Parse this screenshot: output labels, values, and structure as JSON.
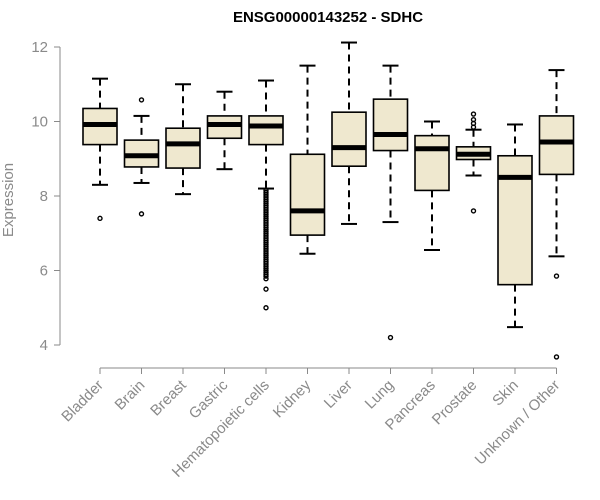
{
  "chart_data": {
    "type": "box",
    "title": "ENSG00000143252 - SDHC",
    "ylabel": "Expression",
    "xlabel": "",
    "ylim": [
      3.6,
      12.2
    ],
    "yticks": [
      4,
      6,
      8,
      10,
      12
    ],
    "ytick_labels": [
      "4",
      "6",
      "8",
      "10",
      "12"
    ],
    "box_fill": "#efe8cf",
    "box_stroke": "#000000",
    "median_color": "#000000",
    "axis_color": "#8a8a8a",
    "categories": [
      "Bladder",
      "Brain",
      "Breast",
      "Gastric",
      "Hematopoietic cells",
      "Kidney",
      "Liver",
      "Lung",
      "Pancreas",
      "Prostate",
      "Skin",
      "Unknown / Other"
    ],
    "boxes": [
      {
        "category": "Bladder",
        "whisker_low": 8.3,
        "q1": 9.38,
        "median": 9.92,
        "q3": 10.35,
        "whisker_high": 11.15,
        "outliers": [
          7.4
        ]
      },
      {
        "category": "Brain",
        "whisker_low": 8.35,
        "q1": 8.78,
        "median": 9.08,
        "q3": 9.5,
        "whisker_high": 10.15,
        "outliers": [
          10.58,
          7.52
        ]
      },
      {
        "category": "Breast",
        "whisker_low": 8.05,
        "q1": 8.75,
        "median": 9.4,
        "q3": 9.82,
        "whisker_high": 11.0,
        "outliers": []
      },
      {
        "category": "Gastric",
        "whisker_low": 8.72,
        "q1": 9.55,
        "median": 9.92,
        "q3": 10.15,
        "whisker_high": 10.8,
        "outliers": []
      },
      {
        "category": "Hematopoietic cells",
        "whisker_low": 8.2,
        "q1": 9.38,
        "median": 9.88,
        "q3": 10.15,
        "whisker_high": 11.1,
        "outliers": [
          8.15,
          8.1,
          8.05,
          8.0,
          7.95,
          7.9,
          7.85,
          7.8,
          7.75,
          7.7,
          7.65,
          7.6,
          7.55,
          7.5,
          7.45,
          7.4,
          7.35,
          7.3,
          7.25,
          7.2,
          7.15,
          7.1,
          7.05,
          7.0,
          6.95,
          6.9,
          6.85,
          6.8,
          6.75,
          6.7,
          6.65,
          6.6,
          6.55,
          6.5,
          6.45,
          6.4,
          6.35,
          6.3,
          6.25,
          6.2,
          6.15,
          6.1,
          6.05,
          6.0,
          5.95,
          5.9,
          5.85,
          5.78,
          5.5,
          5.0
        ]
      },
      {
        "category": "Kidney",
        "whisker_low": 6.45,
        "q1": 6.95,
        "median": 7.6,
        "q3": 9.12,
        "whisker_high": 11.5,
        "outliers": []
      },
      {
        "category": "Liver",
        "whisker_low": 7.25,
        "q1": 8.8,
        "median": 9.3,
        "q3": 10.25,
        "whisker_high": 12.12,
        "outliers": []
      },
      {
        "category": "Lung",
        "whisker_low": 7.3,
        "q1": 9.22,
        "median": 9.65,
        "q3": 10.6,
        "whisker_high": 11.5,
        "outliers": [
          4.2
        ]
      },
      {
        "category": "Pancreas",
        "whisker_low": 6.55,
        "q1": 8.15,
        "median": 9.27,
        "q3": 9.62,
        "whisker_high": 10.0,
        "outliers": []
      },
      {
        "category": "Prostate",
        "whisker_low": 8.55,
        "q1": 8.98,
        "median": 9.12,
        "q3": 9.32,
        "whisker_high": 9.78,
        "outliers": [
          10.2,
          10.05,
          9.95,
          9.85,
          7.6
        ]
      },
      {
        "category": "Skin",
        "whisker_low": 4.48,
        "q1": 5.62,
        "median": 8.5,
        "q3": 9.08,
        "whisker_high": 9.92,
        "outliers": []
      },
      {
        "category": "Unknown / Other",
        "whisker_low": 6.38,
        "q1": 8.58,
        "median": 9.45,
        "q3": 10.15,
        "whisker_high": 11.38,
        "outliers": [
          5.85,
          3.68
        ]
      }
    ]
  }
}
